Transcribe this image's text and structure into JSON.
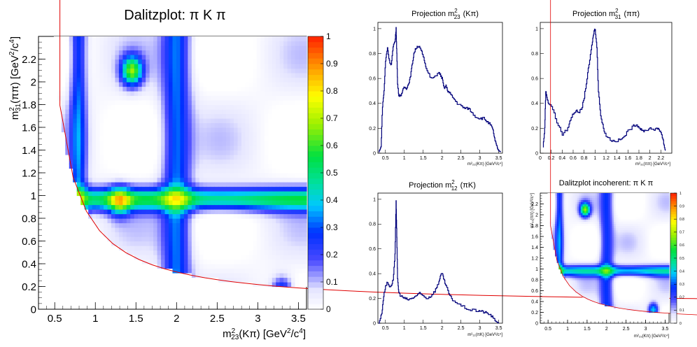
{
  "chart_data": [
    {
      "id": "main",
      "type": "heatmap",
      "title": "Dalitzplot: π K π",
      "xlabel": {
        "base": "m",
        "sup": "2",
        "sub": "23",
        "rest": "(Kπ) [GeV",
        "sup2": "2",
        "rest2": "/c",
        "sup3": "4",
        "rest3": "]"
      },
      "ylabel": {
        "base": "m",
        "sup": "2",
        "sub": "31",
        "rest": "(ππ) [GeV",
        "sup2": "2",
        "rest2": "/c",
        "sup3": "4",
        "rest3": "]"
      },
      "xlim": [
        0.3,
        3.6
      ],
      "ylim": [
        0,
        2.4
      ],
      "xticks": [
        "0.5",
        "1",
        "1.5",
        "2",
        "2.5",
        "3",
        "3.5"
      ],
      "xtick_values": [
        0.5,
        1,
        1.5,
        2,
        2.5,
        3,
        3.5
      ],
      "yticks": [
        "0",
        "0.2",
        "0.4",
        "0.6",
        "0.8",
        "1",
        "1.2",
        "1.4",
        "1.6",
        "1.8",
        "2",
        "2.2"
      ],
      "ytick_values": [
        0,
        0.2,
        0.4,
        0.6,
        0.8,
        1,
        1.2,
        1.4,
        1.6,
        1.8,
        2,
        2.2
      ],
      "colorbar": {
        "range": [
          0,
          1
        ],
        "ticks": [
          "0",
          "0.1",
          "0.2",
          "0.3",
          "0.4",
          "0.5",
          "0.6",
          "0.7",
          "0.8",
          "0.9",
          "1"
        ]
      },
      "boundary": {
        "m0": 5.279,
        "m1": 0.1396,
        "m2": 0.4937,
        "m3": 0.1396
      },
      "features": {
        "horizontal_bands": [
          {
            "y": 0.97,
            "amp": 0.5,
            "width": 0.07
          }
        ],
        "vertical_bands": [
          {
            "x": 0.79,
            "amp": 0.3,
            "width": 0.07
          },
          {
            "x": 2.0,
            "amp": 0.3,
            "width": 0.12
          }
        ],
        "hotspots": [
          {
            "x": 1.3,
            "y": 0.95,
            "amp": 0.35
          },
          {
            "x": 1.45,
            "y": 2.1,
            "amp": 0.6
          },
          {
            "x": 1.9,
            "y": 0.12,
            "amp": 0.45
          },
          {
            "x": 3.3,
            "y": 0.15,
            "amp": 0.35
          }
        ]
      }
    },
    {
      "id": "proj23",
      "type": "line",
      "title": {
        "base": "Projection m",
        "sup": "2",
        "sub": "23",
        "rest": "(Kπ)"
      },
      "xlabel": "m²₂₃(Kπ) [GeV²/c⁴]",
      "xlim": [
        0.3,
        3.6
      ],
      "ylim": [
        0,
        1.05
      ],
      "xticks": [
        "0.5",
        "1",
        "1.5",
        "2",
        "2.5",
        "3",
        "3.5"
      ],
      "xtick_values": [
        0.5,
        1,
        1.5,
        2,
        2.5,
        3,
        3.5
      ],
      "yticks": [
        "0",
        "0.2",
        "0.4",
        "0.6",
        "0.8",
        "1"
      ],
      "ytick_values": [
        0,
        0.2,
        0.4,
        0.6,
        0.8,
        1
      ],
      "x": [
        0.32,
        0.38,
        0.42,
        0.46,
        0.5,
        0.55,
        0.6,
        0.65,
        0.7,
        0.75,
        0.78,
        0.8,
        0.82,
        0.85,
        0.9,
        0.95,
        1.0,
        1.05,
        1.1,
        1.15,
        1.2,
        1.25,
        1.3,
        1.35,
        1.4,
        1.45,
        1.5,
        1.55,
        1.6,
        1.7,
        1.8,
        1.9,
        1.95,
        2.0,
        2.05,
        2.1,
        2.15,
        2.2,
        2.3,
        2.4,
        2.5,
        2.6,
        2.7,
        2.8,
        2.9,
        3.0,
        3.1,
        3.2,
        3.3,
        3.35,
        3.4,
        3.45,
        3.5,
        3.55
      ],
      "values": [
        0.01,
        0.05,
        0.38,
        0.5,
        0.74,
        0.85,
        0.74,
        0.71,
        0.85,
        0.9,
        1.0,
        0.8,
        0.55,
        0.47,
        0.46,
        0.5,
        0.53,
        0.52,
        0.55,
        0.6,
        0.7,
        0.8,
        0.84,
        0.86,
        0.85,
        0.82,
        0.78,
        0.72,
        0.66,
        0.6,
        0.61,
        0.65,
        0.63,
        0.6,
        0.52,
        0.54,
        0.5,
        0.48,
        0.44,
        0.4,
        0.38,
        0.36,
        0.36,
        0.32,
        0.29,
        0.28,
        0.28,
        0.25,
        0.22,
        0.18,
        0.1,
        0.05,
        0.02,
        0.01
      ]
    },
    {
      "id": "proj31",
      "type": "line",
      "title": {
        "base": "Projection m",
        "sup": "2",
        "sub": "31",
        "rest": "(ππ)"
      },
      "xlabel": "m²₃₁(ππ) [GeV²/c⁴]",
      "xlim": [
        0,
        2.4
      ],
      "ylim": [
        0,
        1.05
      ],
      "xticks": [
        "0",
        "0.2",
        "0.4",
        "0.6",
        "0.8",
        "1",
        "1.2",
        "1.4",
        "1.6",
        "1.8",
        "2",
        "2.2"
      ],
      "xtick_values": [
        0,
        0.2,
        0.4,
        0.6,
        0.8,
        1,
        1.2,
        1.4,
        1.6,
        1.8,
        2,
        2.2
      ],
      "yticks": [
        "0",
        "0.2",
        "0.4",
        "0.6",
        "0.8",
        "1"
      ],
      "ytick_values": [
        0,
        0.2,
        0.4,
        0.6,
        0.8,
        1
      ],
      "x": [
        0.05,
        0.08,
        0.1,
        0.12,
        0.15,
        0.2,
        0.3,
        0.4,
        0.5,
        0.55,
        0.6,
        0.65,
        0.7,
        0.75,
        0.8,
        0.85,
        0.9,
        0.95,
        0.98,
        1.0,
        1.03,
        1.06,
        1.1,
        1.15,
        1.2,
        1.3,
        1.4,
        1.5,
        1.6,
        1.7,
        1.75,
        1.8,
        1.85,
        1.9,
        2.0,
        2.1,
        2.15,
        2.2,
        2.25,
        2.28
      ],
      "values": [
        0.05,
        0.2,
        0.5,
        0.45,
        0.4,
        0.38,
        0.25,
        0.15,
        0.2,
        0.27,
        0.32,
        0.34,
        0.33,
        0.35,
        0.45,
        0.6,
        0.75,
        0.9,
        0.98,
        1.0,
        0.85,
        0.5,
        0.3,
        0.2,
        0.14,
        0.1,
        0.1,
        0.12,
        0.18,
        0.22,
        0.23,
        0.21,
        0.18,
        0.18,
        0.2,
        0.19,
        0.2,
        0.17,
        0.08,
        0.02
      ]
    },
    {
      "id": "proj12",
      "type": "line",
      "title": {
        "base": "Projection m",
        "sup": "2",
        "sub": "12",
        "rest": "(πK)"
      },
      "xlabel": "m²₁₂(πK) [GeV²/c⁴]",
      "xlim": [
        0.3,
        3.6
      ],
      "ylim": [
        0,
        1.05
      ],
      "xticks": [
        "0.5",
        "1",
        "1.5",
        "2",
        "2.5",
        "3",
        "3.5"
      ],
      "xtick_values": [
        0.5,
        1,
        1.5,
        2,
        2.5,
        3,
        3.5
      ],
      "yticks": [
        "0",
        "0.2",
        "0.4",
        "0.6",
        "0.8",
        "1"
      ],
      "ytick_values": [
        0,
        0.2,
        0.4,
        0.6,
        0.8,
        1
      ],
      "x": [
        0.32,
        0.4,
        0.45,
        0.5,
        0.55,
        0.6,
        0.65,
        0.7,
        0.75,
        0.78,
        0.8,
        0.82,
        0.85,
        0.9,
        1.0,
        1.1,
        1.2,
        1.3,
        1.4,
        1.5,
        1.6,
        1.7,
        1.8,
        1.9,
        1.95,
        2.0,
        2.05,
        2.1,
        2.2,
        2.3,
        2.5,
        2.7,
        2.9,
        3.0,
        3.1,
        3.2,
        3.3,
        3.4,
        3.45,
        3.5
      ],
      "values": [
        0.0,
        0.08,
        0.22,
        0.3,
        0.33,
        0.3,
        0.3,
        0.35,
        0.55,
        0.98,
        0.7,
        0.35,
        0.25,
        0.22,
        0.2,
        0.19,
        0.2,
        0.22,
        0.24,
        0.22,
        0.2,
        0.22,
        0.26,
        0.32,
        0.38,
        0.4,
        0.35,
        0.3,
        0.22,
        0.18,
        0.14,
        0.11,
        0.1,
        0.1,
        0.09,
        0.08,
        0.06,
        0.02,
        0.01,
        0.0
      ]
    },
    {
      "id": "incoherent",
      "type": "heatmap",
      "title": "Dalitzplot incoherent: π K π",
      "xlabel": "m²₂₃(Kπ) [GeV²/c⁴]",
      "ylabel": "m²₃₁(ππ) [GeV²/c⁴]",
      "xlim": [
        0.3,
        3.6
      ],
      "ylim": [
        0,
        2.4
      ],
      "xticks": [
        "0.5",
        "1",
        "1.5",
        "2",
        "2.5",
        "3",
        "3.5"
      ],
      "xtick_values": [
        0.5,
        1,
        1.5,
        2,
        2.5,
        3,
        3.5
      ],
      "yticks": [
        "0",
        "0.2",
        "0.4",
        "0.6",
        "0.8",
        "1",
        "1.2",
        "1.4",
        "1.6",
        "1.8",
        "2",
        "2.2"
      ],
      "ytick_values": [
        0,
        0.2,
        0.4,
        0.6,
        0.8,
        1,
        1.2,
        1.4,
        1.6,
        1.8,
        2,
        2.2
      ],
      "colorbar": {
        "range": [
          0,
          1
        ],
        "ticks": [
          "0",
          "0.1",
          "0.2",
          "0.3",
          "0.4",
          "0.5",
          "0.6",
          "0.7",
          "0.8",
          "0.9",
          "1"
        ]
      },
      "features": {
        "horizontal_bands": [
          {
            "y": 0.97,
            "amp": 0.4,
            "width": 0.07
          }
        ],
        "vertical_bands": [
          {
            "x": 0.79,
            "amp": 0.3,
            "width": 0.07
          },
          {
            "x": 2.0,
            "amp": 0.25,
            "width": 0.12
          }
        ],
        "hotspots": [
          {
            "x": 1.45,
            "y": 2.1,
            "amp": 0.6
          },
          {
            "x": 2.0,
            "y": 0.12,
            "amp": 0.75
          },
          {
            "x": 3.2,
            "y": 0.25,
            "amp": 0.4
          }
        ]
      }
    }
  ]
}
